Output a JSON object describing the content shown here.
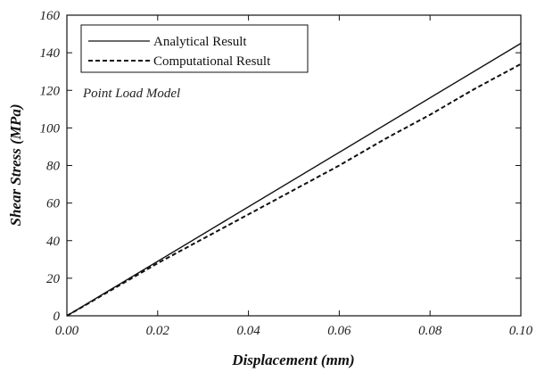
{
  "chart_data": {
    "type": "line",
    "xlabel": "Displacement (mm)",
    "ylabel": "Shear Stress (MPa)",
    "xlim": [
      0,
      0.1
    ],
    "ylim": [
      0,
      160
    ],
    "x_ticks": [
      "0.00",
      "0.02",
      "0.04",
      "0.06",
      "0.08",
      "0.10"
    ],
    "y_ticks": [
      "0",
      "20",
      "40",
      "60",
      "80",
      "100",
      "120",
      "140",
      "160"
    ],
    "grid": false,
    "legend_position": "top-left",
    "annotation": "Point Load Model",
    "series": [
      {
        "name": "Analytical Result",
        "style": "solid",
        "color": "#111111",
        "x": [
          0,
          0.1
        ],
        "y": [
          0,
          145
        ]
      },
      {
        "name": "Computational Result",
        "style": "dashed",
        "color": "#111111",
        "x": [
          0,
          0.01,
          0.02,
          0.03,
          0.04,
          0.05,
          0.06,
          0.07,
          0.08,
          0.09,
          0.1
        ],
        "y": [
          0,
          14,
          28,
          41,
          54,
          67,
          80,
          94,
          107,
          121,
          134
        ]
      }
    ]
  }
}
